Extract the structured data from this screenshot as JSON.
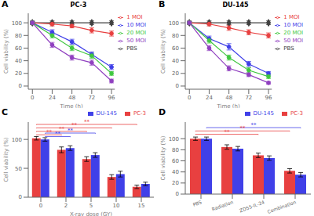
{
  "chart_data": [
    {
      "type": "line",
      "title": "PC-3",
      "x_label": "Time (h)",
      "y_label": "Cell viability (%)",
      "annotations": [
        {
          "text": "A"
        }
      ],
      "x": [
        0,
        24,
        48,
        72,
        96
      ],
      "xlim": [
        -5,
        100
      ],
      "ylim": [
        -5,
        115
      ],
      "xticks": [
        0,
        24,
        48,
        72,
        96
      ],
      "yticks": [
        0,
        20,
        40,
        60,
        80,
        100
      ],
      "grid": false,
      "legend": "upper right",
      "series": [
        {
          "name": "PBS",
          "color": "#404040",
          "marker": "diamond",
          "values": [
            100,
            100,
            100,
            100,
            100
          ],
          "errors": [
            3,
            3,
            3,
            3,
            3
          ]
        },
        {
          "name": "1 MOI",
          "color": "#e84040",
          "marker": "circle",
          "values": [
            100,
            98,
            95,
            88,
            83
          ],
          "errors": [
            2,
            3,
            3,
            4,
            4
          ]
        },
        {
          "name": "10 MOI",
          "color": "#4040e8",
          "marker": "circle",
          "values": [
            100,
            85,
            70,
            50,
            30
          ],
          "errors": [
            2,
            4,
            4,
            4,
            4
          ]
        },
        {
          "name": "20 MOI",
          "color": "#40c840",
          "marker": "circle",
          "values": [
            100,
            80,
            60,
            48,
            20
          ],
          "errors": [
            2,
            4,
            4,
            4,
            3
          ]
        },
        {
          "name": "50 MOI",
          "color": "#9040c0",
          "marker": "circle",
          "values": [
            100,
            65,
            45,
            37,
            8
          ],
          "errors": [
            2,
            4,
            4,
            4,
            3
          ]
        }
      ]
    },
    {
      "type": "line",
      "title": "DU-145",
      "x_label": "Time (h)",
      "y_label": "Cell viability (%)",
      "annotations": [
        {
          "text": "B"
        }
      ],
      "x": [
        0,
        24,
        48,
        72,
        96
      ],
      "xlim": [
        -5,
        100
      ],
      "ylim": [
        -5,
        115
      ],
      "xticks": [
        0,
        24,
        48,
        72,
        96
      ],
      "yticks": [
        0,
        20,
        40,
        60,
        80,
        100
      ],
      "grid": false,
      "legend": "upper right",
      "series": [
        {
          "name": "PBS",
          "color": "#404040",
          "marker": "diamond",
          "values": [
            100,
            100,
            100,
            100,
            100
          ],
          "errors": [
            3,
            3,
            3,
            3,
            3
          ]
        },
        {
          "name": "1 MOI",
          "color": "#e84040",
          "marker": "circle",
          "values": [
            100,
            98,
            92,
            85,
            80
          ],
          "errors": [
            2,
            3,
            4,
            4,
            4
          ]
        },
        {
          "name": "10 MOI",
          "color": "#4040e8",
          "marker": "circle",
          "values": [
            100,
            75,
            62,
            35,
            20
          ],
          "errors": [
            2,
            4,
            5,
            4,
            3
          ]
        },
        {
          "name": "20 MOI",
          "color": "#40c840",
          "marker": "circle",
          "values": [
            100,
            72,
            45,
            25,
            15
          ],
          "errors": [
            2,
            4,
            4,
            4,
            3
          ]
        },
        {
          "name": "50 MOI",
          "color": "#9040c0",
          "marker": "circle",
          "values": [
            100,
            60,
            28,
            18,
            5
          ],
          "errors": [
            2,
            4,
            4,
            3,
            2
          ]
        }
      ]
    },
    {
      "type": "bar",
      "x_label": "X-ray dose (GY)",
      "y_label": "Cell viability (%)",
      "annotations": [
        {
          "text": "C"
        },
        {
          "text": "**",
          "color": "#e84040",
          "series": "PC-3",
          "from": "0",
          "to": "2",
          "y": 107
        },
        {
          "text": "**",
          "color": "#e84040",
          "series": "PC-3",
          "from": "0",
          "to": "5",
          "y": 113
        },
        {
          "text": "**",
          "color": "#e84040",
          "series": "PC-3",
          "from": "0",
          "to": "10",
          "y": 119
        },
        {
          "text": "**",
          "color": "#e84040",
          "series": "PC-3",
          "from": "0",
          "to": "15",
          "y": 125
        },
        {
          "text": "**",
          "color": "#4040e8",
          "series": "DU-145",
          "from": "0",
          "to": "2",
          "y": 104
        },
        {
          "text": "**",
          "color": "#4040e8",
          "series": "DU-145",
          "from": "0",
          "to": "5",
          "y": 110
        }
      ],
      "categories": [
        "0",
        "2",
        "5",
        "10",
        "15"
      ],
      "ylim": [
        0,
        130
      ],
      "yticks": [
        0,
        50,
        100
      ],
      "grid": false,
      "legend": "upper right",
      "series": [
        {
          "name": "PC-3",
          "color": "#e84040",
          "values": [
            102,
            82,
            66,
            35,
            18
          ],
          "errors": [
            3,
            5,
            4,
            4,
            3
          ]
        },
        {
          "name": "DU-145",
          "color": "#4040e8",
          "values": [
            100,
            85,
            73,
            40,
            23
          ],
          "errors": [
            3,
            4,
            4,
            5,
            3
          ]
        }
      ]
    },
    {
      "type": "bar",
      "y_label": "Cell viability (%)",
      "annotations": [
        {
          "text": "D"
        },
        {
          "text": "**",
          "color": "#e84040",
          "series": "PC-3",
          "from": "PBS",
          "to": "ZD55-IL-24",
          "y": 107
        },
        {
          "text": "**",
          "color": "#e84040",
          "series": "PC-3",
          "from": "PBS",
          "to": "Combination",
          "y": 113
        },
        {
          "text": "**",
          "color": "#4040e8",
          "series": "DU-145",
          "from": "PBS",
          "to": "Combination",
          "y": 119
        }
      ],
      "categories": [
        "PBS",
        "Radiation",
        "ZD55-IL-24",
        "Combination"
      ],
      "ylim": [
        0,
        130
      ],
      "yticks": [
        0,
        20,
        40,
        60,
        80,
        100
      ],
      "grid": false,
      "legend": "upper right",
      "series": [
        {
          "name": "PC-3",
          "color": "#e84040",
          "values": [
            100,
            85,
            70,
            42
          ],
          "errors": [
            3,
            4,
            4,
            4
          ]
        },
        {
          "name": "DU-145",
          "color": "#4040e8",
          "values": [
            100,
            82,
            65,
            35
          ],
          "errors": [
            3,
            4,
            4,
            4
          ]
        }
      ]
    }
  ]
}
